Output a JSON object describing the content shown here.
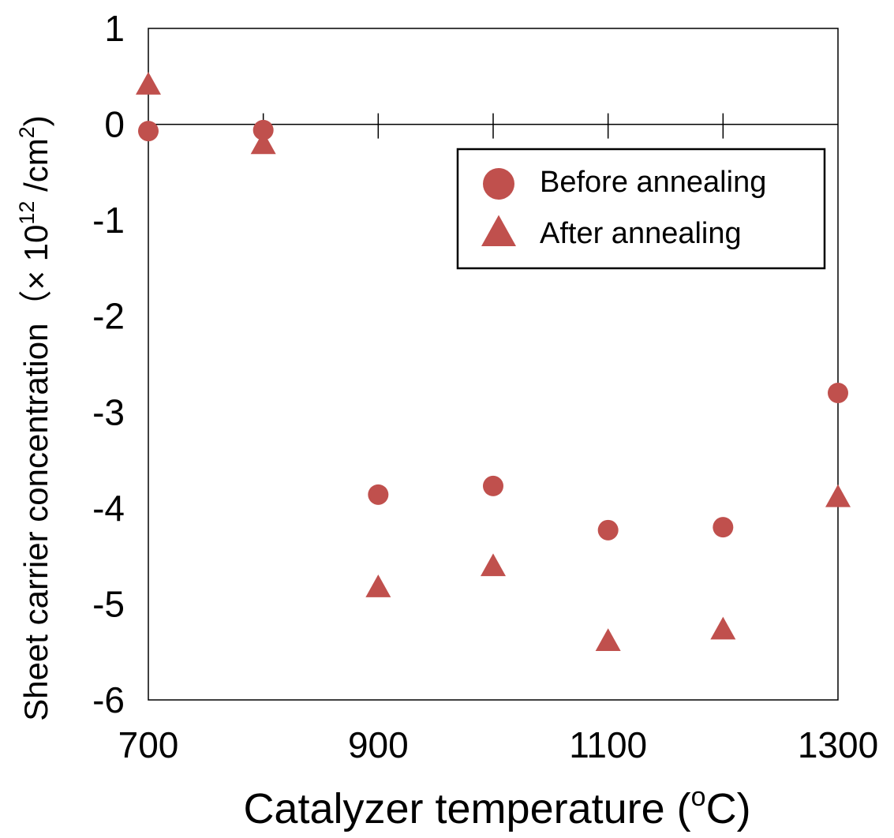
{
  "chart_data": {
    "type": "scatter",
    "xlabel_main": "Catalyzer temperature (",
    "xlabel_sup": "o",
    "xlabel_tail": "C)",
    "ylabel_main": "Sheet carrier concentration（× 10",
    "ylabel_sup": "12",
    "ylabel_mid": " /cm",
    "ylabel_sup2": "2",
    "ylabel_tail": ")",
    "xlim": [
      700,
      1300
    ],
    "ylim": [
      -6,
      1
    ],
    "x_tick_labels": [
      "700",
      "900",
      "1100",
      "1300"
    ],
    "x_tick_values": [
      700,
      900,
      1100,
      1300
    ],
    "y_tick_values": [
      1,
      0,
      -1,
      -2,
      -3,
      -4,
      -5,
      -6
    ],
    "y_tick_labels": [
      "1",
      "0",
      "-1",
      "-2",
      "-3",
      "-4",
      "-5",
      "-6"
    ],
    "zero_line_ticks": [
      800,
      900,
      1000,
      1100,
      1200
    ],
    "legend": {
      "position": "top-right",
      "entries": [
        "Before annealing",
        "After annealing"
      ]
    },
    "series": [
      {
        "name": "Before annealing",
        "marker": "circle",
        "color": "#C0504D",
        "points": [
          {
            "x": 700,
            "y": -0.07
          },
          {
            "x": 800,
            "y": -0.06
          },
          {
            "x": 900,
            "y": -3.86
          },
          {
            "x": 1000,
            "y": -3.77
          },
          {
            "x": 1100,
            "y": -4.23
          },
          {
            "x": 1200,
            "y": -4.2
          },
          {
            "x": 1300,
            "y": -2.8
          }
        ]
      },
      {
        "name": "After annealing",
        "marker": "triangle",
        "color": "#C0504D",
        "points": [
          {
            "x": 700,
            "y": 0.4
          },
          {
            "x": 800,
            "y": -0.22
          },
          {
            "x": 900,
            "y": -4.84
          },
          {
            "x": 1000,
            "y": -4.62
          },
          {
            "x": 1100,
            "y": -5.4
          },
          {
            "x": 1200,
            "y": -5.28
          },
          {
            "x": 1300,
            "y": -3.9
          }
        ]
      }
    ]
  }
}
